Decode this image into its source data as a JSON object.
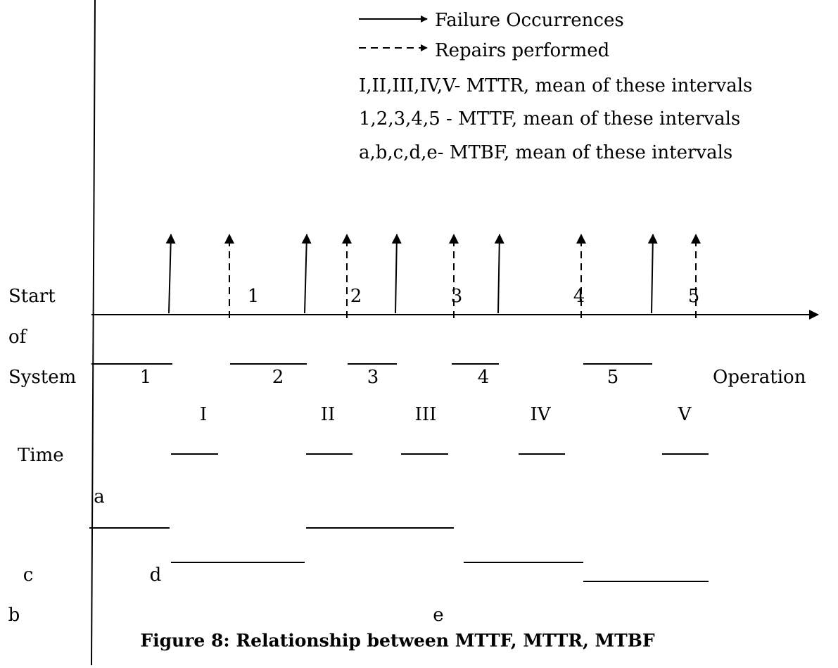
{
  "legend": {
    "failure": "Failure Occurrences",
    "repair": "Repairs performed",
    "mttr": "I,II,III,IV,V-  MTTR, mean of these intervals",
    "mttf": "1,2,3,4,5  -  MTTF, mean of these intervals",
    "mtbf": "a,b,c,d,e-  MTBF, mean of these intervals"
  },
  "axis_labels": {
    "start": "Start",
    "of": "of",
    "system": "System",
    "time": "Time",
    "operation": "Operation"
  },
  "upper_numbers": [
    "1",
    "2",
    "3",
    "4",
    "5"
  ],
  "mttf_labels": [
    "1",
    "2",
    "3",
    "4",
    "5"
  ],
  "mttr_labels": [
    "I",
    "II",
    "III",
    "IV",
    "V"
  ],
  "mtbf_labels": [
    "a",
    "b",
    "c",
    "d",
    "e"
  ],
  "caption": "Figure 8: Relationship between MTTF, MTTR, MTBF"
}
